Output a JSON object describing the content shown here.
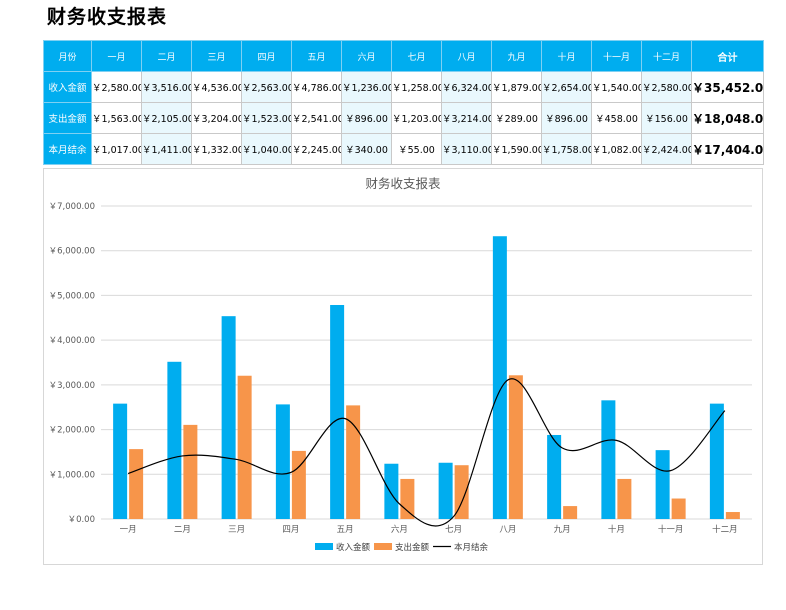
{
  "page_title": "财务收支报表",
  "table": {
    "header": [
      "月份",
      "一月",
      "二月",
      "三月",
      "四月",
      "五月",
      "六月",
      "七月",
      "八月",
      "九月",
      "十月",
      "十一月",
      "十二月",
      "合计"
    ],
    "rows": [
      {
        "label": "收入金额",
        "cells": [
          "￥2,580.00",
          "￥3,516.00",
          "￥4,536.00",
          "￥2,563.00",
          "￥4,786.00",
          "￥1,236.00",
          "￥1,258.00",
          "￥6,324.00",
          "￥1,879.00",
          "￥2,654.00",
          "￥1,540.00",
          "￥2,580.00"
        ],
        "total": "￥35,452.00"
      },
      {
        "label": "支出金额",
        "cells": [
          "￥1,563.00",
          "￥2,105.00",
          "￥3,204.00",
          "￥1,523.00",
          "￥2,541.00",
          "￥896.00",
          "￥1,203.00",
          "￥3,214.00",
          "￥289.00",
          "￥896.00",
          "￥458.00",
          "￥156.00"
        ],
        "total": "￥18,048.00"
      },
      {
        "label": "本月结余",
        "cells": [
          "￥1,017.00",
          "￥1,411.00",
          "￥1,332.00",
          "￥1,040.00",
          "￥2,245.00",
          "￥340.00",
          "￥55.00",
          "￥3,110.00",
          "￥1,590.00",
          "￥1,758.00",
          "￥1,082.00",
          "￥2,424.00"
        ],
        "total": "￥17,404.00"
      }
    ]
  },
  "chart_data": {
    "type": "bar",
    "title": "财务收支报表",
    "categories": [
      "一月",
      "二月",
      "三月",
      "四月",
      "五月",
      "六月",
      "七月",
      "八月",
      "九月",
      "十月",
      "十一月",
      "十二月"
    ],
    "series": [
      {
        "name": "收入金额",
        "type": "bar",
        "color": "#00adef",
        "values": [
          2580,
          3516,
          4536,
          2563,
          4786,
          1236,
          1258,
          6324,
          1879,
          2654,
          1540,
          2580
        ]
      },
      {
        "name": "支出金额",
        "type": "bar",
        "color": "#f7954a",
        "values": [
          1563,
          2105,
          3204,
          1523,
          2541,
          896,
          1203,
          3214,
          289,
          896,
          458,
          156
        ]
      },
      {
        "name": "本月结余",
        "type": "line",
        "smooth": true,
        "color": "#000000",
        "values": [
          1017,
          1411,
          1332,
          1040,
          2245,
          340,
          55,
          3110,
          1590,
          1758,
          1082,
          2424
        ]
      }
    ],
    "ylim": [
      0,
      7000
    ],
    "yticks": [
      0,
      1000,
      2000,
      3000,
      4000,
      5000,
      6000,
      7000
    ],
    "ytick_labels": [
      "￥0.00",
      "￥1,000.00",
      "￥2,000.00",
      "￥3,000.00",
      "￥4,000.00",
      "￥5,000.00",
      "￥6,000.00",
      "￥7,000.00"
    ],
    "grid": true,
    "legend_position": "bottom"
  }
}
